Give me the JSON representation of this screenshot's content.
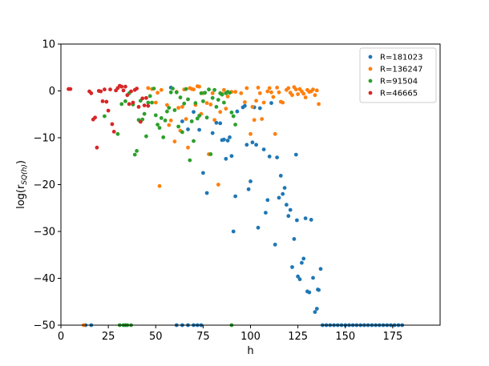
{
  "chart_data": {
    "type": "scatter",
    "xlabel": "h",
    "ylabel": "log(r_{SQ(h)})",
    "ylabel_parts": {
      "base": "log(r",
      "sub": "SQ(h)",
      "close": ")"
    },
    "xlim": [
      0,
      200
    ],
    "ylim": [
      -50,
      10
    ],
    "xticks": [
      0,
      25,
      50,
      75,
      100,
      125,
      150,
      175
    ],
    "yticks": [
      10,
      0,
      -10,
      -20,
      -30,
      -40,
      -50
    ],
    "grid": false,
    "legend_position": "top-right",
    "series": [
      {
        "name": "R=181023",
        "color": "#1f77b4",
        "points": [
          [
            13,
            -50
          ],
          [
            16,
            -50
          ],
          [
            34,
            -50
          ],
          [
            58,
            0.7
          ],
          [
            61,
            -50
          ],
          [
            64,
            -50
          ],
          [
            67,
            -50
          ],
          [
            70,
            -50
          ],
          [
            72,
            -50
          ],
          [
            74,
            -50
          ],
          [
            64,
            -6.5
          ],
          [
            67,
            -8.2
          ],
          [
            70,
            -4.5
          ],
          [
            73,
            -8.3
          ],
          [
            75,
            -17.5
          ],
          [
            77,
            -21.8
          ],
          [
            80,
            -9
          ],
          [
            82,
            -6.8
          ],
          [
            84,
            -6.9
          ],
          [
            85,
            -10.5
          ],
          [
            86,
            -10.4
          ],
          [
            87,
            -14.5
          ],
          [
            88,
            -10.6
          ],
          [
            89,
            -9.9
          ],
          [
            90,
            -13.9
          ],
          [
            91,
            -30
          ],
          [
            92,
            -22.5
          ],
          [
            93,
            -4.4
          ],
          [
            96,
            -3.5
          ],
          [
            97,
            -3.2
          ],
          [
            98,
            -11.5
          ],
          [
            99,
            -21
          ],
          [
            100,
            -19.3
          ],
          [
            101,
            -11
          ],
          [
            102,
            -3.5
          ],
          [
            103,
            -11.5
          ],
          [
            104,
            -29.2
          ],
          [
            105,
            -3.7
          ],
          [
            107,
            -12.5
          ],
          [
            108,
            -26
          ],
          [
            109,
            -23.3
          ],
          [
            110,
            -14
          ],
          [
            111,
            -2.6
          ],
          [
            113,
            -32.8
          ],
          [
            114,
            -14.2
          ],
          [
            115,
            -22.8
          ],
          [
            116,
            -18.1
          ],
          [
            117,
            -22
          ],
          [
            118,
            -20.7
          ],
          [
            119,
            -24.3
          ],
          [
            120,
            -26.7
          ],
          [
            121,
            -25.4
          ],
          [
            122,
            -37.6
          ],
          [
            123,
            -31.6
          ],
          [
            124,
            -13.6
          ],
          [
            124.5,
            -27.6
          ],
          [
            125,
            -39.6
          ],
          [
            126,
            -40.2
          ],
          [
            127,
            -36.7
          ],
          [
            128,
            -35.8
          ],
          [
            129,
            -27.2
          ],
          [
            130,
            -42.8
          ],
          [
            131,
            -43
          ],
          [
            132,
            -27.5
          ],
          [
            133,
            -39.9
          ],
          [
            134,
            -47.2
          ],
          [
            135,
            -46.5
          ],
          [
            135.5,
            -42.4
          ],
          [
            136,
            -42.5
          ],
          [
            137,
            -38
          ],
          [
            138,
            -50
          ],
          [
            140,
            -50
          ],
          [
            142,
            -50
          ],
          [
            144,
            -50
          ],
          [
            146,
            -50
          ],
          [
            148,
            -50
          ],
          [
            150,
            -50
          ],
          [
            152,
            -50
          ],
          [
            154,
            -50
          ],
          [
            156,
            -50
          ],
          [
            158,
            -50
          ],
          [
            160,
            -50
          ],
          [
            162,
            -50
          ],
          [
            164,
            -50
          ],
          [
            166,
            -50
          ],
          [
            168,
            -50
          ],
          [
            170,
            -50
          ],
          [
            172,
            -50
          ],
          [
            174,
            -50
          ],
          [
            176,
            -50
          ],
          [
            178,
            -50
          ],
          [
            180,
            -50
          ]
        ]
      },
      {
        "name": "R=136247",
        "color": "#ff7f0e",
        "points": [
          [
            12,
            -50
          ],
          [
            46,
            0.6
          ],
          [
            48,
            0.4
          ],
          [
            50,
            -2.5
          ],
          [
            51,
            -0.4
          ],
          [
            52,
            -20.3
          ],
          [
            53,
            0.2
          ],
          [
            56,
            -3
          ],
          [
            57,
            -7.3
          ],
          [
            58,
            -6.3
          ],
          [
            60,
            -10.8
          ],
          [
            61,
            -0.2
          ],
          [
            62,
            -3.6
          ],
          [
            63,
            -8.5
          ],
          [
            64,
            -3.4
          ],
          [
            65,
            0.3
          ],
          [
            66,
            -6
          ],
          [
            67,
            -12.1
          ],
          [
            68,
            0.6
          ],
          [
            69,
            0.4
          ],
          [
            70,
            0.3
          ],
          [
            71,
            -3
          ],
          [
            72,
            1
          ],
          [
            73,
            0.9
          ],
          [
            74,
            -4.9
          ],
          [
            75,
            -0.5
          ],
          [
            77,
            -2.6
          ],
          [
            78,
            -13.5
          ],
          [
            79,
            -2.9
          ],
          [
            80,
            -0.5
          ],
          [
            81,
            -6.2
          ],
          [
            83,
            -20
          ],
          [
            84,
            -4.5
          ],
          [
            85,
            -0.6
          ],
          [
            86,
            0.2
          ],
          [
            87,
            -3.8
          ],
          [
            88,
            -1.2
          ],
          [
            90,
            -0.2
          ],
          [
            92,
            -0.2
          ],
          [
            95,
            -0.5
          ],
          [
            97,
            -2.4
          ],
          [
            98,
            0.6
          ],
          [
            100,
            -9.2
          ],
          [
            101,
            -3.4
          ],
          [
            102,
            -6.2
          ],
          [
            103,
            -2.1
          ],
          [
            104,
            0.7
          ],
          [
            105,
            -0.5
          ],
          [
            106,
            -6
          ],
          [
            107,
            -2.5
          ],
          [
            109,
            -0.1
          ],
          [
            110,
            0.6
          ],
          [
            111,
            -0.3
          ],
          [
            112,
            -1.3
          ],
          [
            113,
            -9.2
          ],
          [
            114,
            0.7
          ],
          [
            115,
            -0.3
          ],
          [
            116,
            -2.3
          ],
          [
            117,
            -2.5
          ],
          [
            119,
            0.2
          ],
          [
            120,
            0.6
          ],
          [
            121,
            -0.4
          ],
          [
            122,
            -0.9
          ],
          [
            123,
            0.8
          ],
          [
            124,
            0.3
          ],
          [
            125,
            -0.7
          ],
          [
            126,
            0.4
          ],
          [
            127,
            -0.1
          ],
          [
            128,
            -0.6
          ],
          [
            129,
            -1.4
          ],
          [
            130,
            0.2
          ],
          [
            131,
            -0.2
          ],
          [
            132,
            -0.1
          ],
          [
            133,
            0.3
          ],
          [
            134,
            -0.9
          ],
          [
            135,
            0.1
          ],
          [
            136,
            -2.8
          ]
        ]
      },
      {
        "name": "R=91504",
        "color": "#2ca02c",
        "points": [
          [
            31,
            -50
          ],
          [
            33,
            -50
          ],
          [
            35,
            -50
          ],
          [
            37,
            -50
          ],
          [
            90,
            -50
          ],
          [
            23,
            -5.4
          ],
          [
            30,
            -9.2
          ],
          [
            32,
            -2.8
          ],
          [
            34,
            -2.2
          ],
          [
            36,
            -0.5
          ],
          [
            38,
            -2.9
          ],
          [
            39,
            -13.6
          ],
          [
            40,
            -12.8
          ],
          [
            41,
            -6.2
          ],
          [
            42,
            -2.1
          ],
          [
            43,
            -6.1
          ],
          [
            44,
            -4.9
          ],
          [
            45,
            -9.7
          ],
          [
            46,
            -2.5
          ],
          [
            47,
            -1.1
          ],
          [
            48,
            -2.5
          ],
          [
            49,
            0.5
          ],
          [
            50,
            -5.2
          ],
          [
            51,
            -7.2
          ],
          [
            52,
            -7.9
          ],
          [
            53,
            -5.8
          ],
          [
            54,
            -9.9
          ],
          [
            55,
            -6.3
          ],
          [
            56,
            -4.4
          ],
          [
            57,
            -3.6
          ],
          [
            58,
            -0.3
          ],
          [
            59,
            0.5
          ],
          [
            60,
            -4.1
          ],
          [
            61,
            -0.3
          ],
          [
            62,
            -7.6
          ],
          [
            63,
            -1.4
          ],
          [
            64,
            -8.8
          ],
          [
            65,
            -2.7
          ],
          [
            66,
            0.4
          ],
          [
            67,
            -1.8
          ],
          [
            68,
            -14.8
          ],
          [
            69,
            -6.5
          ],
          [
            70,
            -10.7
          ],
          [
            71,
            -2.6
          ],
          [
            72,
            -5.9
          ],
          [
            73,
            -5.3
          ],
          [
            74,
            -0.5
          ],
          [
            75,
            -2.2
          ],
          [
            76,
            -0.4
          ],
          [
            77,
            -5.7
          ],
          [
            78,
            0.3
          ],
          [
            79,
            -13.5
          ],
          [
            80,
            -1.5
          ],
          [
            81,
            0.2
          ],
          [
            82,
            -3.4
          ],
          [
            83,
            -1.9
          ],
          [
            84,
            -0.5
          ],
          [
            85,
            -0.8
          ],
          [
            86,
            -2.5
          ],
          [
            87,
            -0.5
          ],
          [
            88,
            -0.2
          ],
          [
            89,
            -0.4
          ],
          [
            90,
            -4.6
          ],
          [
            91,
            -5.4
          ],
          [
            92,
            -7.2
          ]
        ]
      },
      {
        "name": "R=46665",
        "color": "#d62728",
        "points": [
          [
            4,
            0.4
          ],
          [
            5,
            0.4
          ],
          [
            15,
            -0.1
          ],
          [
            16,
            -0.5
          ],
          [
            17,
            -6.1
          ],
          [
            18,
            -5.7
          ],
          [
            19,
            -12.1
          ],
          [
            20,
            0
          ],
          [
            21,
            -0.1
          ],
          [
            22,
            -2.2
          ],
          [
            23,
            0.3
          ],
          [
            24,
            -2.3
          ],
          [
            25,
            -4.2
          ],
          [
            26,
            0.3
          ],
          [
            27,
            -7.1
          ],
          [
            28,
            -8.7
          ],
          [
            29,
            0.1
          ],
          [
            30,
            0.6
          ],
          [
            31,
            1.1
          ],
          [
            32,
            0.9
          ],
          [
            33,
            0.1
          ],
          [
            34,
            0.9
          ],
          [
            35,
            -0.9
          ],
          [
            36,
            -2.8
          ],
          [
            37,
            -0.1
          ],
          [
            38,
            -2.5
          ],
          [
            39,
            0.2
          ],
          [
            40,
            0.5
          ],
          [
            41,
            -3.4
          ],
          [
            42,
            -6.6
          ],
          [
            43,
            -1.6
          ],
          [
            44,
            -3.1
          ],
          [
            45,
            -1.5
          ],
          [
            46,
            -3.2
          ]
        ]
      }
    ]
  }
}
